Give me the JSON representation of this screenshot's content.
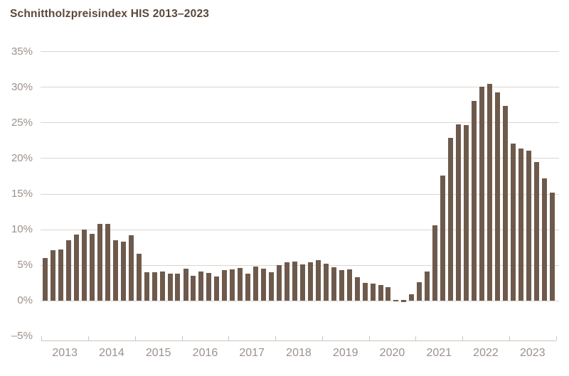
{
  "chart_data": {
    "type": "bar",
    "title": "Schnittholzpreisindex HIS 2013–2023",
    "unit": "%",
    "bars_per_year": 6,
    "categories": [
      "2013",
      "2014",
      "2015",
      "2016",
      "2017",
      "2018",
      "2019",
      "2020",
      "2021",
      "2022",
      "2023"
    ],
    "series": [
      {
        "name": "Schnittholzpreisindex HIS",
        "values_by_year": {
          "2013": [
            6.0,
            7.1,
            7.2,
            8.5,
            9.3,
            10.0
          ],
          "2014": [
            9.4,
            10.8,
            10.8,
            8.5,
            8.3,
            9.2
          ],
          "2015": [
            6.6,
            4.0,
            4.0,
            4.1,
            3.8,
            3.8
          ],
          "2016": [
            4.5,
            3.5,
            4.1,
            3.9,
            3.4,
            4.3
          ],
          "2017": [
            4.4,
            4.6,
            3.8,
            4.8,
            4.5,
            4.0
          ],
          "2018": [
            5.0,
            5.4,
            5.5,
            5.1,
            5.4,
            5.7
          ],
          "2019": [
            5.2,
            4.7,
            4.3,
            4.4,
            3.3,
            2.5
          ],
          "2020": [
            2.4,
            2.2,
            1.9,
            -0.1,
            -0.3,
            0.9
          ],
          "2021": [
            2.6,
            4.1,
            10.6,
            17.5,
            22.8,
            24.7
          ],
          "2022": [
            24.6,
            28.0,
            30.0,
            30.4,
            29.2,
            27.3
          ],
          "2023": [
            22.0,
            21.3,
            21.0,
            19.4,
            17.1,
            15.1
          ]
        }
      }
    ],
    "y_axis": {
      "range": [
        -5,
        35
      ],
      "ticks": [
        {
          "value": 35,
          "label": "35%"
        },
        {
          "value": 30,
          "label": "30%"
        },
        {
          "value": 25,
          "label": "25%"
        },
        {
          "value": 20,
          "label": "20%"
        },
        {
          "value": 15,
          "label": "15%"
        },
        {
          "value": 10,
          "label": "10%"
        },
        {
          "value": 5,
          "label": "5%"
        },
        {
          "value": 0,
          "label": "0%"
        },
        {
          "value": -5,
          "label": "–5%"
        }
      ],
      "gridlines": "horizontal, from 0% to 35% only"
    },
    "x_axis": {
      "tick_marks": "at each year boundary, 12 ticks on a baseline below the plot"
    },
    "legend": "none",
    "colors": {
      "bar": "#6E5A4C",
      "title": "#5A473B",
      "axis_labels": "#9C918B",
      "gridline": "#DCD6CC",
      "axis_line": "#CDC6BC",
      "background": "#FFFFFF"
    }
  }
}
